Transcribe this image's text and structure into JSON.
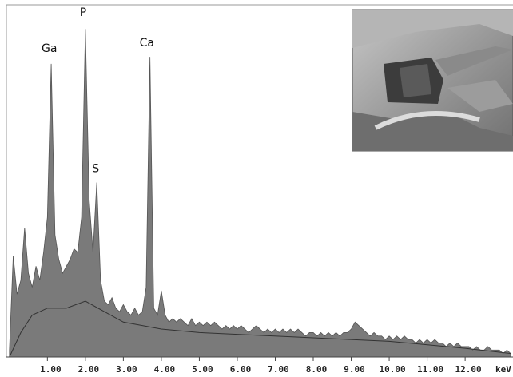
{
  "chart_data": {
    "type": "area",
    "x": [
      0.0,
      0.1,
      0.2,
      0.3,
      0.4,
      0.5,
      0.6,
      0.7,
      0.8,
      0.9,
      1.0,
      1.1,
      1.2,
      1.3,
      1.4,
      1.5,
      1.6,
      1.7,
      1.8,
      1.9,
      2.0,
      2.1,
      2.2,
      2.3,
      2.4,
      2.5,
      2.6,
      2.7,
      2.8,
      2.9,
      3.0,
      3.1,
      3.2,
      3.3,
      3.4,
      3.5,
      3.6,
      3.7,
      3.8,
      3.9,
      4.0,
      4.1,
      4.2,
      4.3,
      4.4,
      4.5,
      4.6,
      4.7,
      4.8,
      4.9,
      5.0,
      5.1,
      5.2,
      5.3,
      5.4,
      5.5,
      5.6,
      5.7,
      5.8,
      5.9,
      6.0,
      6.1,
      6.2,
      6.3,
      6.4,
      6.5,
      6.6,
      6.7,
      6.8,
      6.9,
      7.0,
      7.1,
      7.2,
      7.3,
      7.4,
      7.5,
      7.6,
      7.7,
      7.8,
      7.9,
      8.0,
      8.1,
      8.2,
      8.3,
      8.4,
      8.5,
      8.6,
      8.7,
      8.8,
      8.9,
      9.0,
      9.1,
      9.2,
      9.3,
      9.4,
      9.5,
      9.6,
      9.7,
      9.8,
      9.9,
      10.0,
      10.1,
      10.2,
      10.3,
      10.4,
      10.5,
      10.6,
      10.7,
      10.8,
      10.9,
      11.0,
      11.1,
      11.2,
      11.3,
      11.4,
      11.5,
      11.6,
      11.7,
      11.8,
      11.9,
      12.0,
      12.1,
      12.2,
      12.3,
      12.4,
      12.5,
      12.6,
      12.7,
      12.8,
      12.9,
      13.0,
      13.1,
      13.2
    ],
    "series": [
      {
        "color": "#7a7a7a",
        "values": [
          2,
          29,
          18,
          22,
          37,
          24,
          20,
          26,
          22,
          30,
          40,
          84,
          35,
          28,
          24,
          26,
          28,
          31,
          30,
          40,
          94,
          45,
          30,
          50,
          22,
          16,
          15,
          17,
          14,
          13,
          15,
          13,
          12,
          14,
          12,
          13,
          20,
          86,
          14,
          12,
          19,
          12,
          10,
          11,
          10,
          11,
          10,
          9,
          11,
          9,
          10,
          9,
          10,
          9,
          10,
          9,
          8,
          9,
          8,
          9,
          8,
          9,
          8,
          7,
          8,
          9,
          8,
          7,
          8,
          7,
          8,
          7,
          8,
          7,
          8,
          7,
          8,
          7,
          6,
          7,
          7,
          6,
          7,
          6,
          7,
          6,
          7,
          6,
          7,
          7,
          8,
          10,
          9,
          8,
          7,
          6,
          7,
          6,
          6,
          5,
          6,
          5,
          6,
          5,
          6,
          5,
          5,
          4,
          5,
          4,
          5,
          4,
          5,
          4,
          4,
          3,
          4,
          3,
          4,
          3,
          3,
          3,
          2,
          3,
          2,
          2,
          3,
          2,
          2,
          2,
          1,
          2,
          1
        ]
      },
      {
        "color": "#333333",
        "x": [
          0,
          0.3,
          0.6,
          1.0,
          1.5,
          2.0,
          2.5,
          3.0,
          4.0,
          5.0,
          6.0,
          8.0,
          10.0,
          12.0,
          13.2
        ],
        "values": [
          0,
          7,
          12,
          14,
          14,
          16,
          13,
          10,
          8,
          7,
          6.5,
          5.5,
          4.5,
          2.5,
          1
        ]
      }
    ],
    "annotations": [
      {
        "text": "Ga",
        "x": 1.05,
        "y": 87.4
      },
      {
        "text": "P",
        "x": 1.94,
        "y": 97.7
      },
      {
        "text": "S",
        "x": 2.27,
        "y": 53
      },
      {
        "text": "Ca",
        "x": 3.62,
        "y": 89
      }
    ],
    "xlabel": "keV",
    "xlim": [
      -0.08,
      13.26
    ],
    "ylim": [
      0,
      100
    ],
    "xticks": [
      {
        "value": 1,
        "label": "1.00"
      },
      {
        "value": 2,
        "label": "2.00"
      },
      {
        "value": 3,
        "label": "3.00"
      },
      {
        "value": 4,
        "label": "4.00"
      },
      {
        "value": 5,
        "label": "5.00"
      },
      {
        "value": 6,
        "label": "6.00"
      },
      {
        "value": 7,
        "label": "7.00"
      },
      {
        "value": 8,
        "label": "8.00"
      },
      {
        "value": 9,
        "label": "9.00"
      },
      {
        "value": 10,
        "label": "10.00"
      },
      {
        "value": 11,
        "label": "11.00"
      },
      {
        "value": 12,
        "label": "12.00"
      }
    ]
  }
}
